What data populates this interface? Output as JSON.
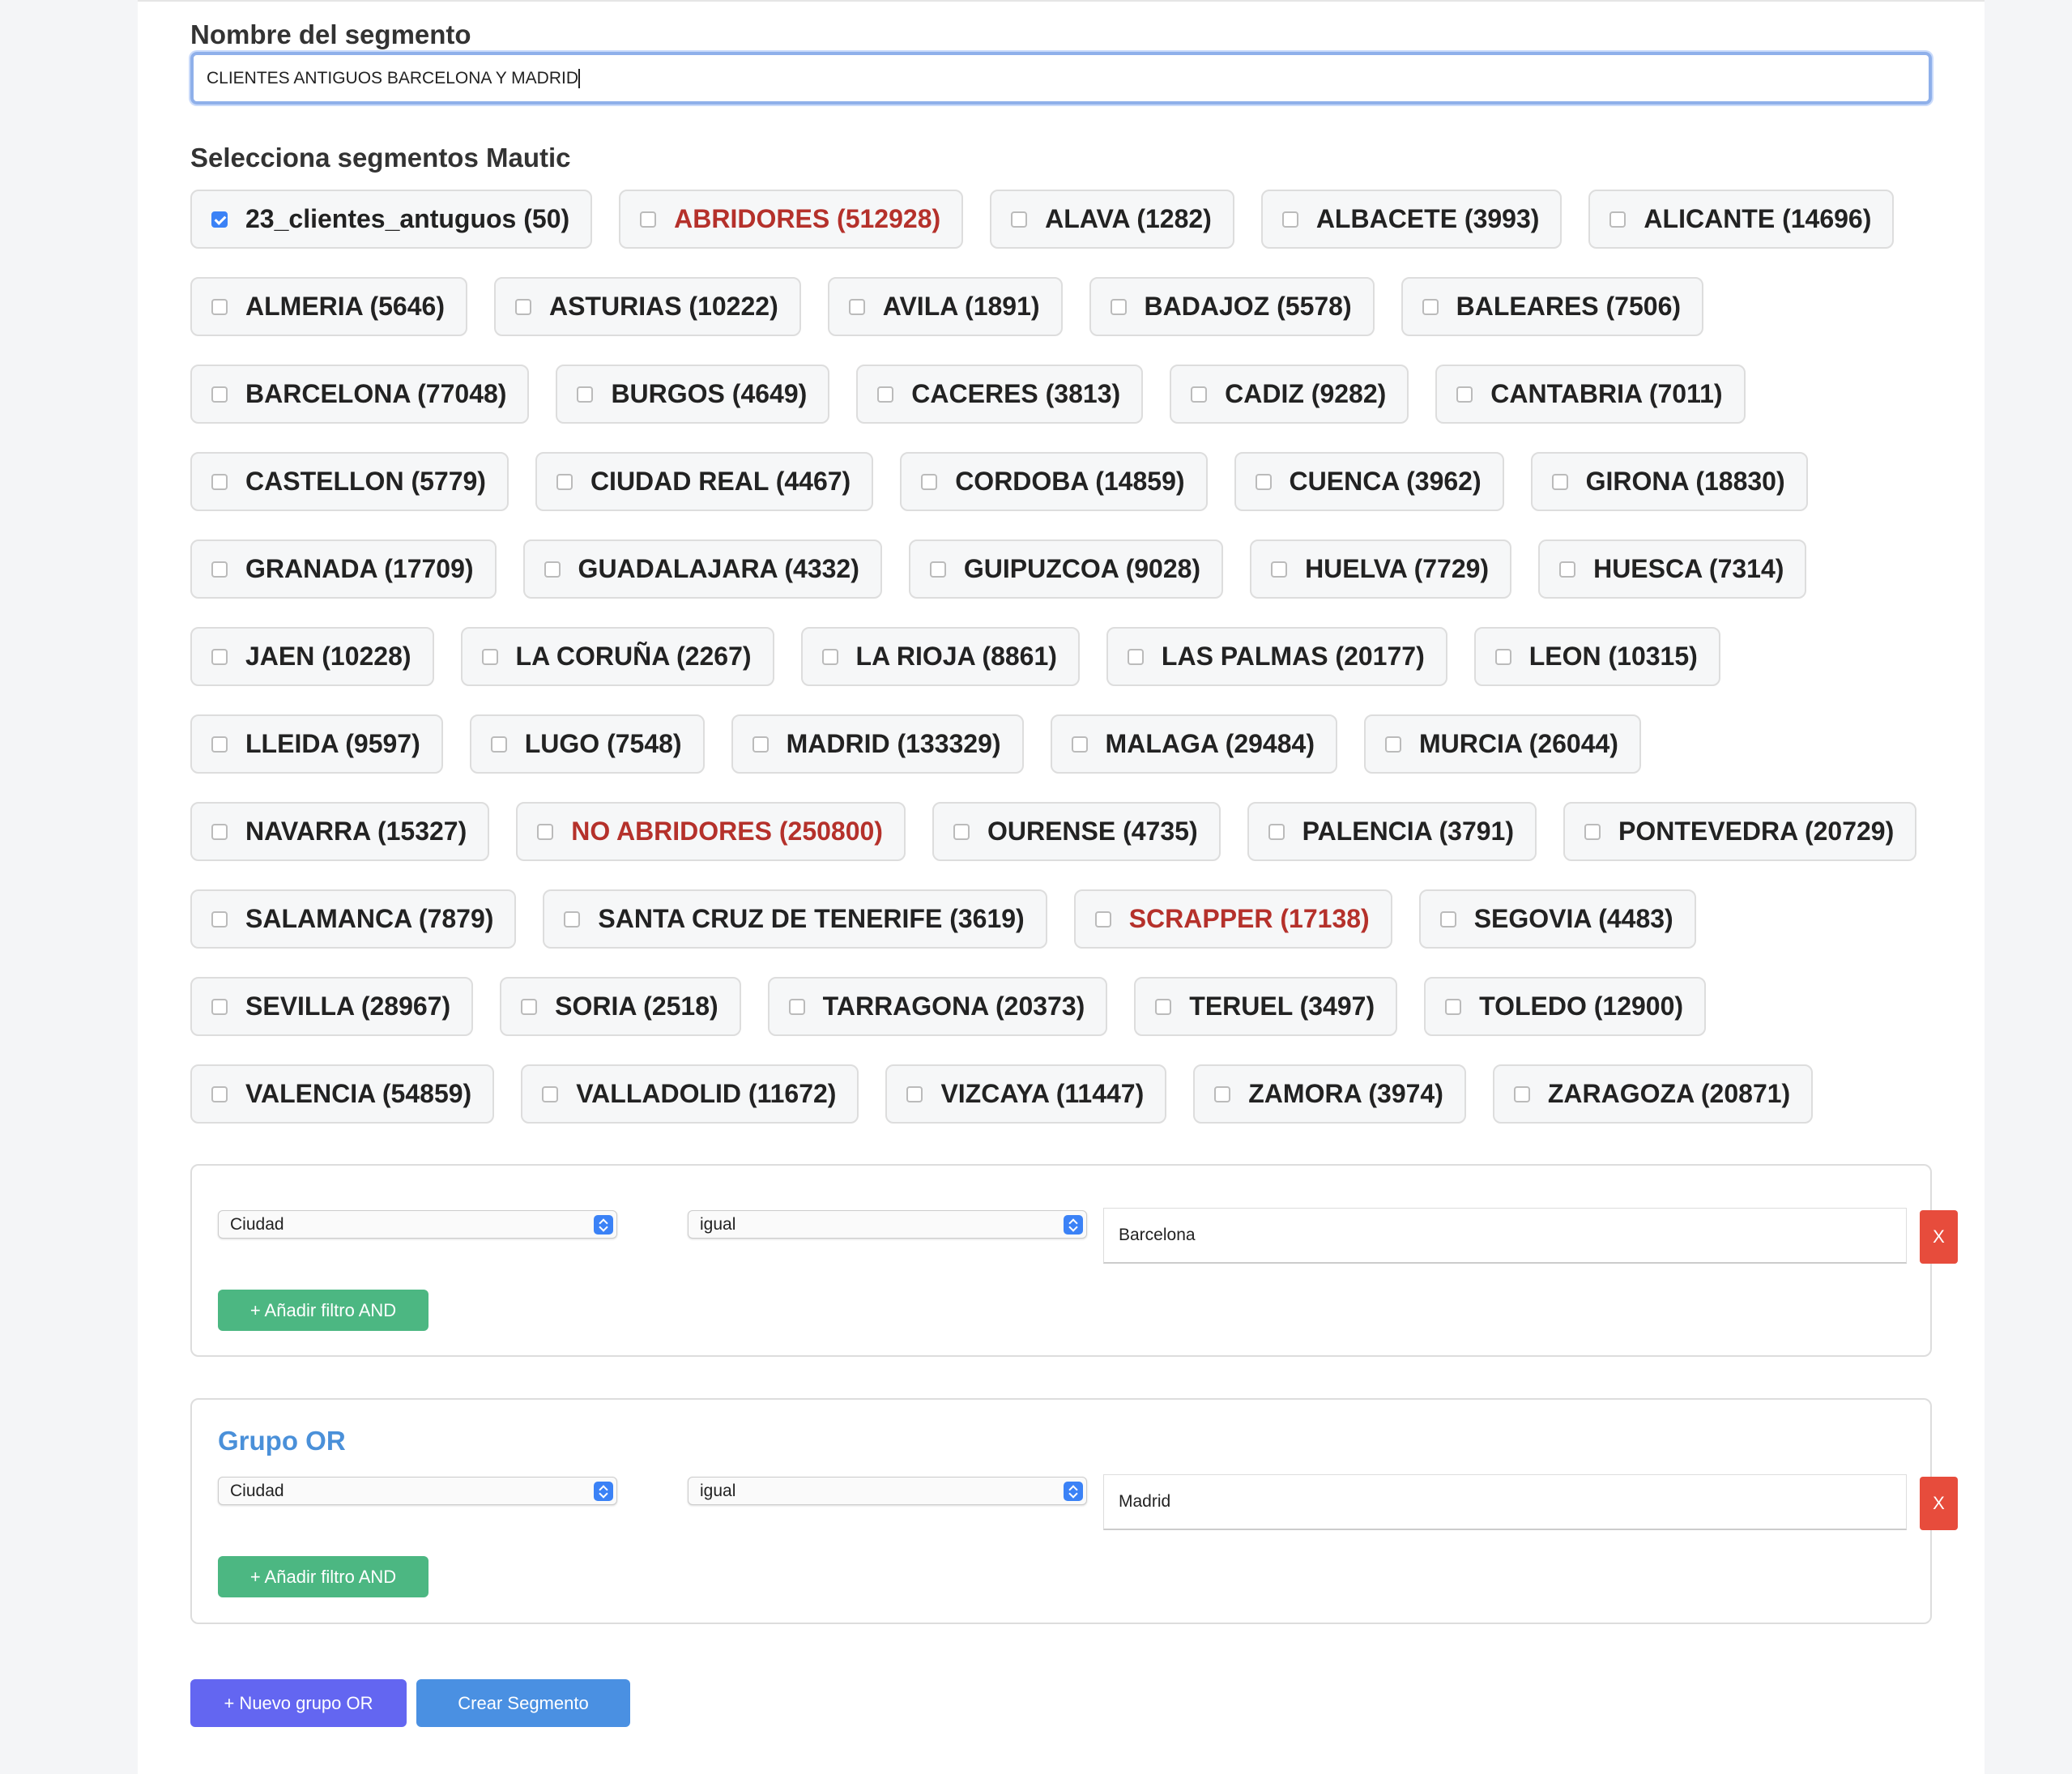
{
  "form": {
    "name_label": "Nombre del segmento",
    "name_value": "CLIENTES ANTIGUOS BARCELONA Y MADRID",
    "segments_label": "Selecciona segmentos Mautic",
    "segments": [
      {
        "label": "23_clientes_antuguos (50)",
        "checked": true
      },
      {
        "label": "ABRIDORES (512928)",
        "color": "#b5312b"
      },
      {
        "label": "ALAVA (1282)"
      },
      {
        "label": "ALBACETE (3993)"
      },
      {
        "label": "ALICANTE (14696)"
      },
      {
        "label": "ALMERIA (5646)"
      },
      {
        "label": "ASTURIAS (10222)"
      },
      {
        "label": "AVILA (1891)"
      },
      {
        "label": "BADAJOZ (5578)"
      },
      {
        "label": "BALEARES (7506)"
      },
      {
        "label": "BARCELONA (77048)"
      },
      {
        "label": "BURGOS (4649)"
      },
      {
        "label": "CACERES (3813)"
      },
      {
        "label": "CADIZ (9282)"
      },
      {
        "label": "CANTABRIA (7011)"
      },
      {
        "label": "CASTELLON (5779)"
      },
      {
        "label": "CIUDAD REAL (4467)"
      },
      {
        "label": "CORDOBA (14859)"
      },
      {
        "label": "CUENCA (3962)"
      },
      {
        "label": "GIRONA (18830)"
      },
      {
        "label": "GRANADA (17709)"
      },
      {
        "label": "GUADALAJARA (4332)"
      },
      {
        "label": "GUIPUZCOA (9028)"
      },
      {
        "label": "HUELVA (7729)"
      },
      {
        "label": "HUESCA (7314)"
      },
      {
        "label": "JAEN (10228)"
      },
      {
        "label": "LA CORUÑA (2267)"
      },
      {
        "label": "LA RIOJA (8861)"
      },
      {
        "label": "LAS PALMAS (20177)"
      },
      {
        "label": "LEON (10315)"
      },
      {
        "label": "LLEIDA (9597)"
      },
      {
        "label": "LUGO (7548)"
      },
      {
        "label": "MADRID (133329)"
      },
      {
        "label": "MALAGA (29484)"
      },
      {
        "label": "MURCIA (26044)"
      },
      {
        "label": "NAVARRA (15327)"
      },
      {
        "label": "NO ABRIDORES (250800)",
        "color": "#b5312b"
      },
      {
        "label": "OURENSE (4735)"
      },
      {
        "label": "PALENCIA (3791)"
      },
      {
        "label": "PONTEVEDRA (20729)"
      },
      {
        "label": "SALAMANCA (7879)"
      },
      {
        "label": "SANTA CRUZ DE TENERIFE (3619)"
      },
      {
        "label": "SCRAPPER (17138)",
        "color": "#b5312b"
      },
      {
        "label": "SEGOVIA (4483)"
      },
      {
        "label": "SEVILLA (28967)"
      },
      {
        "label": "SORIA (2518)"
      },
      {
        "label": "TARRAGONA (20373)"
      },
      {
        "label": "TERUEL (3497)"
      },
      {
        "label": "TOLEDO (12900)"
      },
      {
        "label": "VALENCIA (54859)"
      },
      {
        "label": "VALLADOLID (11672)"
      },
      {
        "label": "VIZCAYA (11447)"
      },
      {
        "label": "ZAMORA (3974)"
      },
      {
        "label": "ZARAGOZA (20871)"
      }
    ],
    "groups": [
      {
        "field": "Ciudad",
        "operator": "igual",
        "value": "Barcelona",
        "remove": "X",
        "add": "+ Añadir filtro AND"
      },
      {
        "title": "Grupo OR",
        "field": "Ciudad",
        "operator": "igual",
        "value": "Madrid",
        "remove": "X",
        "add": "+ Añadir filtro AND"
      }
    ],
    "new_group_button": "+ Nuevo grupo OR",
    "create_button": "Crear Segmento"
  }
}
